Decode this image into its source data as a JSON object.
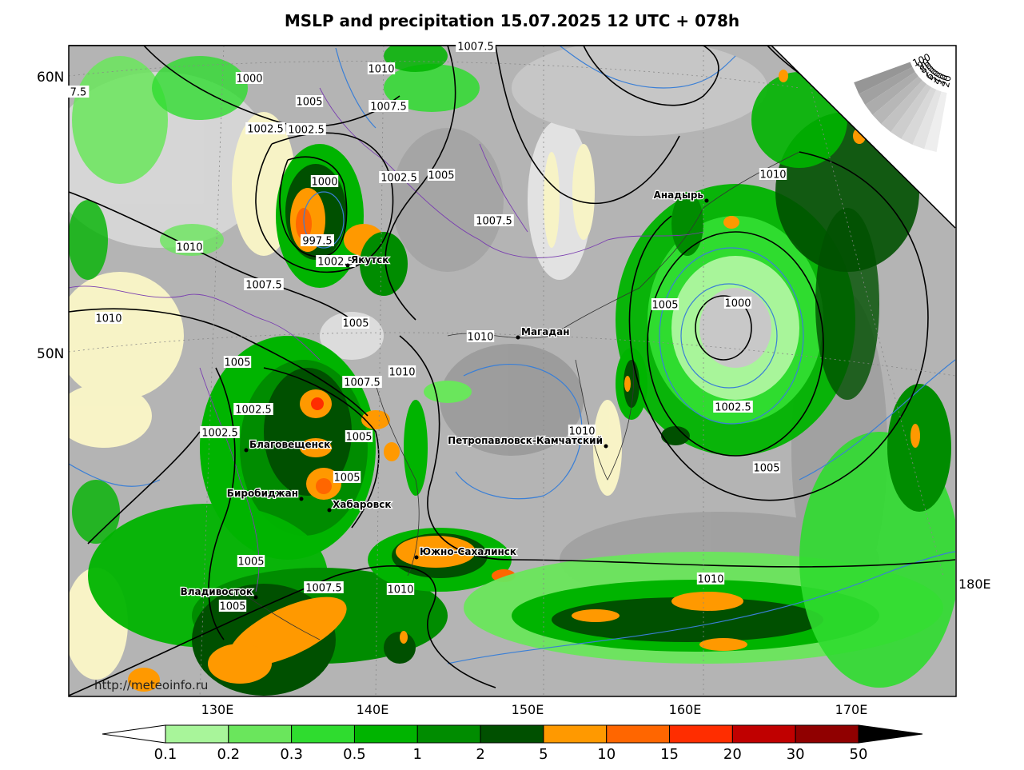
{
  "title": "MSLP and precipitation 15.07.2025 12 UTC + 078h",
  "watermark": "http://meteoinfo.ru",
  "lat_labels": [
    "60N",
    "50N"
  ],
  "lon_labels": [
    "130E",
    "140E",
    "150E",
    "160E",
    "170E",
    "180E"
  ],
  "isobars": [
    {
      "text": "1007.5",
      "ix": 595,
      "iy": 58
    },
    {
      "text": "1000",
      "ix": 312,
      "iy": 98
    },
    {
      "text": "7.5",
      "ix": 98,
      "iy": 115
    },
    {
      "text": "1010",
      "ix": 477,
      "iy": 86
    },
    {
      "text": "1005",
      "ix": 387,
      "iy": 127
    },
    {
      "text": "1007.5",
      "ix": 486,
      "iy": 133
    },
    {
      "text": "1002.5",
      "ix": 332,
      "iy": 161
    },
    {
      "text": "1002.5",
      "ix": 383,
      "iy": 162
    },
    {
      "text": "1000",
      "ix": 406,
      "iy": 227
    },
    {
      "text": "1002.5",
      "ix": 499,
      "iy": 222
    },
    {
      "text": "1005",
      "ix": 552,
      "iy": 219
    },
    {
      "text": "1010",
      "ix": 967,
      "iy": 218
    },
    {
      "text": "1007.5",
      "ix": 618,
      "iy": 276
    },
    {
      "text": "997.5",
      "ix": 397,
      "iy": 301
    },
    {
      "text": "1010",
      "ix": 237,
      "iy": 309
    },
    {
      "text": "1002.5",
      "ix": 420,
      "iy": 327
    },
    {
      "text": "1007.5",
      "ix": 330,
      "iy": 356
    },
    {
      "text": "1005",
      "ix": 832,
      "iy": 381
    },
    {
      "text": "1000",
      "ix": 923,
      "iy": 379
    },
    {
      "text": "1010",
      "ix": 136,
      "iy": 398
    },
    {
      "text": "1005",
      "ix": 445,
      "iy": 404
    },
    {
      "text": "1010",
      "ix": 601,
      "iy": 421
    },
    {
      "text": "1005",
      "ix": 297,
      "iy": 453
    },
    {
      "text": "1010",
      "ix": 503,
      "iy": 465
    },
    {
      "text": "1007.5",
      "ix": 453,
      "iy": 478
    },
    {
      "text": "1002.5",
      "ix": 317,
      "iy": 512
    },
    {
      "text": "1002.5",
      "ix": 917,
      "iy": 509
    },
    {
      "text": "1002.5",
      "ix": 275,
      "iy": 541
    },
    {
      "text": "1005",
      "ix": 449,
      "iy": 546
    },
    {
      "text": "1010",
      "ix": 728,
      "iy": 539
    },
    {
      "text": "1005",
      "ix": 434,
      "iy": 597
    },
    {
      "text": "1005",
      "ix": 959,
      "iy": 585
    },
    {
      "text": "1005",
      "ix": 314,
      "iy": 702
    },
    {
      "text": "1010",
      "ix": 889,
      "iy": 724
    },
    {
      "text": "1007.5",
      "ix": 405,
      "iy": 735
    },
    {
      "text": "1010",
      "ix": 501,
      "iy": 737
    },
    {
      "text": "1005",
      "ix": 291,
      "iy": 758
    }
  ],
  "cities": [
    {
      "name": "Якутск",
      "ix": 435,
      "iy": 332,
      "anchor": "start"
    },
    {
      "name": "Анадырь",
      "ix": 884,
      "iy": 251,
      "anchor": "end"
    },
    {
      "name": "Магадан",
      "ix": 648,
      "iy": 422,
      "anchor": "start"
    },
    {
      "name": "Благовещенск",
      "ix": 308,
      "iy": 563,
      "anchor": "start"
    },
    {
      "name": "Петропавловск-Камчатский",
      "ix": 758,
      "iy": 558,
      "anchor": "end"
    },
    {
      "name": "Биробиджан",
      "ix": 377,
      "iy": 624,
      "anchor": "end"
    },
    {
      "name": "Хабаровск",
      "ix": 412,
      "iy": 638,
      "anchor": "start"
    },
    {
      "name": "Южно-Сахалинск",
      "ix": 521,
      "iy": 697,
      "anchor": "start"
    },
    {
      "name": "Владивосток",
      "ix": 320,
      "iy": 747,
      "anchor": "end"
    }
  ],
  "legend": {
    "values": [
      "0.1",
      "0.2",
      "0.3",
      "0.5",
      "1",
      "2",
      "5",
      "10",
      "15",
      "20",
      "30",
      "50"
    ],
    "colors": [
      "#a8f59a",
      "#6ae65c",
      "#2fdc2f",
      "#00b400",
      "#008c00",
      "#005000",
      "#ff9900",
      "#ff6600",
      "#ff2d00",
      "#c00000",
      "#900000"
    ]
  },
  "cloud_scale": {
    "values": [
      "100",
      "90",
      "80",
      "70",
      "60",
      "50",
      "40",
      "30",
      "20"
    ]
  }
}
